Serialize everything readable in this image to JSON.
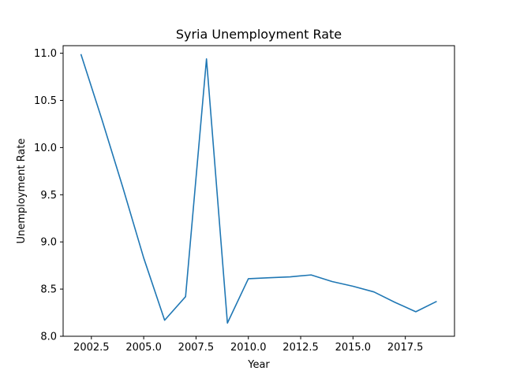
{
  "chart_data": {
    "type": "line",
    "title": "Syria Unemployment Rate",
    "xlabel": "Year",
    "ylabel": "Unemployment Rate",
    "xlim": [
      2001.15,
      2019.85
    ],
    "ylim": [
      8.0,
      11.08
    ],
    "grid": false,
    "x_ticks": [
      "2002.5",
      "2005.0",
      "2007.5",
      "2010.0",
      "2012.5",
      "2015.0",
      "2017.5"
    ],
    "y_ticks": [
      "8.0",
      "8.5",
      "9.0",
      "9.5",
      "10.0",
      "10.5",
      "11.0"
    ],
    "series": [
      {
        "color": "#1f77b4",
        "x": [
          2002,
          2003,
          2004,
          2005,
          2006,
          2007,
          2008,
          2009,
          2010,
          2011,
          2012,
          2013,
          2014,
          2015,
          2016,
          2017,
          2018,
          2019
        ],
        "y": [
          10.99,
          10.3,
          9.58,
          8.83,
          8.17,
          8.42,
          10.94,
          8.14,
          8.61,
          8.62,
          8.63,
          8.65,
          8.58,
          8.53,
          8.47,
          8.36,
          8.26,
          8.37
        ]
      }
    ]
  }
}
